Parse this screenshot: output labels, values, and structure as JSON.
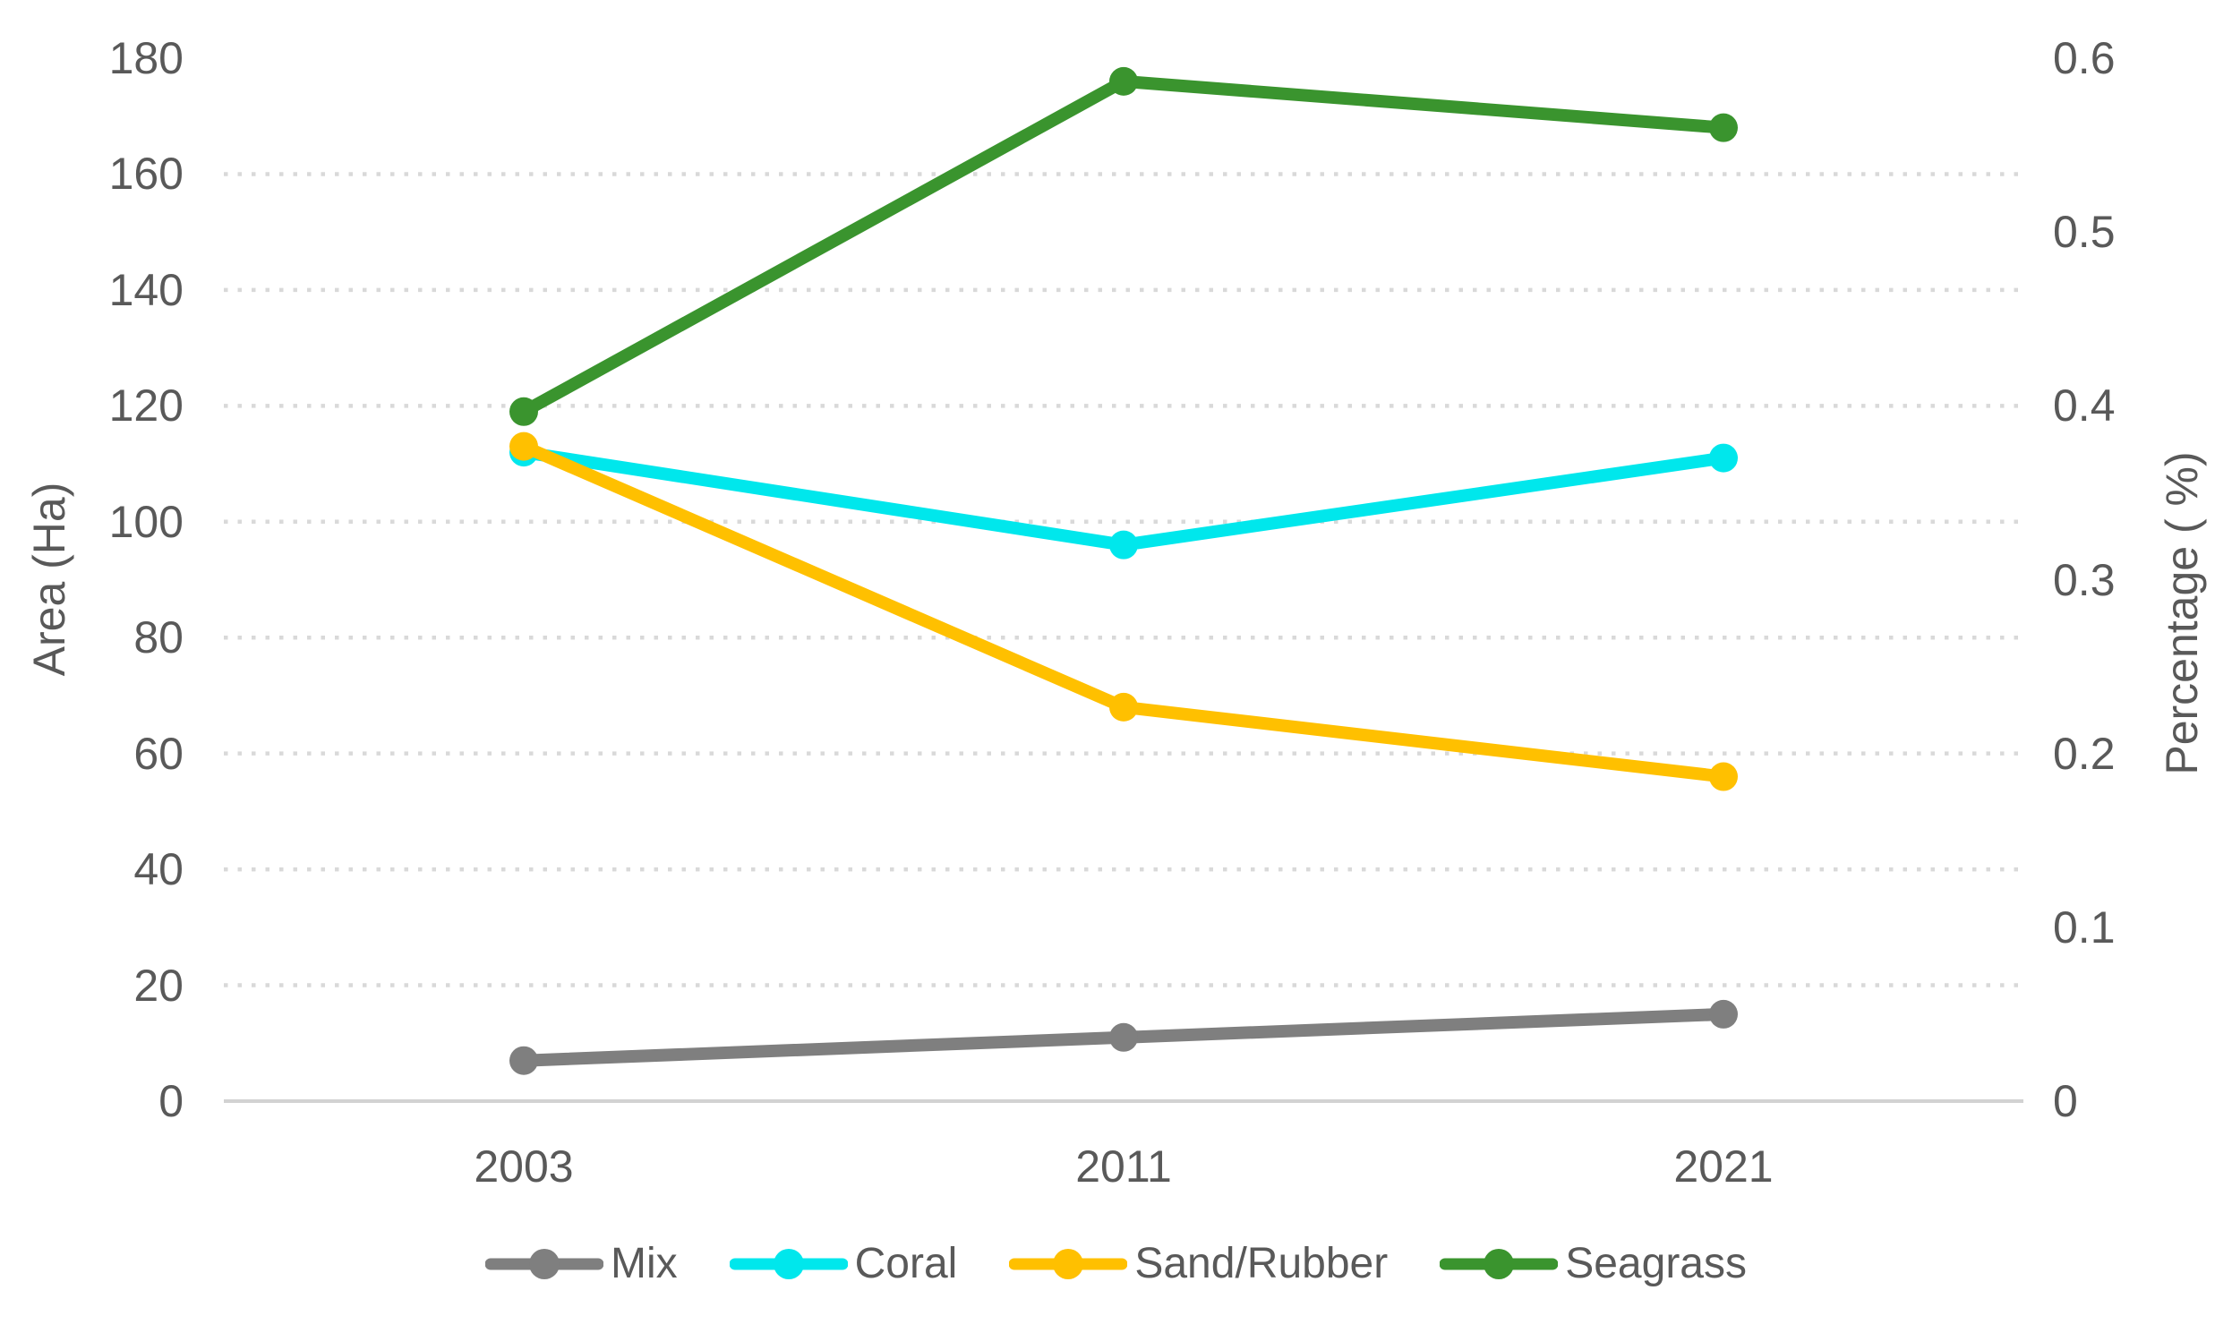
{
  "chart_data": {
    "type": "line",
    "title": "",
    "categories": [
      "2003",
      "2011",
      "2021"
    ],
    "series": [
      {
        "name": "Mix",
        "color": "#7f7f7f",
        "values": [
          7,
          11,
          15
        ]
      },
      {
        "name": "Coral",
        "color": "#00e7ec",
        "values": [
          112,
          96,
          111
        ]
      },
      {
        "name": "Sand/Rubber",
        "color": "#ffc000",
        "values": [
          113,
          68,
          56
        ]
      },
      {
        "name": "Seagrass",
        "color": "#3a942e",
        "values": [
          119,
          176,
          168
        ]
      }
    ],
    "left_axis": {
      "label": "Area (Ha)",
      "range": [
        0,
        180
      ],
      "ticks": [
        "180",
        "160",
        "140",
        "120",
        "100",
        "80",
        "60",
        "40",
        "20",
        "0"
      ]
    },
    "right_axis": {
      "label": "Percentage ( %)",
      "range": [
        0,
        0.6
      ],
      "ticks": [
        "0.6",
        "0.5",
        "0.4",
        "0.3",
        "0.2",
        "0.1",
        "0"
      ]
    },
    "legend": {
      "position": "bottom",
      "entries": [
        "Mix",
        "Coral",
        "Sand/Rubber",
        "Seagrass"
      ]
    },
    "grid": {
      "show": true,
      "style": "dotted"
    },
    "colors": {
      "text": "#595959",
      "gridline": "#d9d9d9",
      "axis_line": "#d2d2d2",
      "background": "#ffffff"
    }
  }
}
